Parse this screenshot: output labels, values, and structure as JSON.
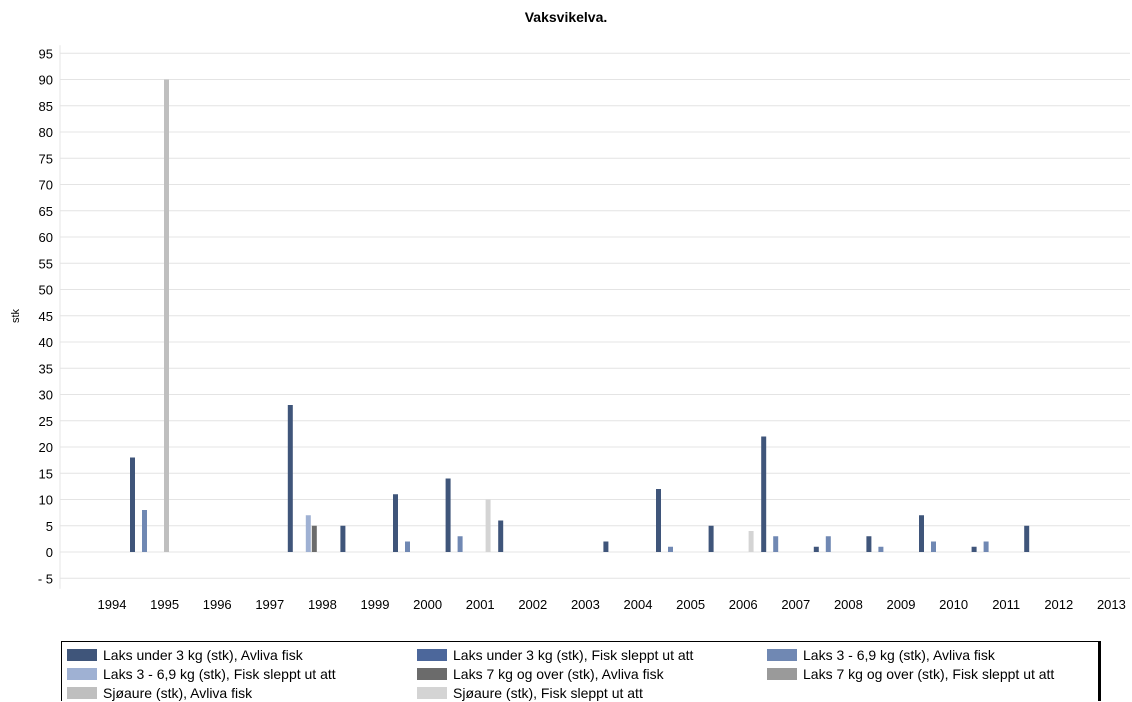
{
  "chart_data": {
    "type": "bar",
    "title": "Vaksvikelva.",
    "ylabel": "stk",
    "xlabel": "",
    "ylim": [
      -7,
      95
    ],
    "yticks": [
      95,
      90,
      85,
      80,
      75,
      70,
      65,
      60,
      55,
      50,
      45,
      40,
      35,
      30,
      25,
      20,
      15,
      10,
      5,
      0,
      -5
    ],
    "ytick_labels": [
      "95",
      "90",
      "85",
      "80",
      "75",
      "70",
      "65",
      "60",
      "55",
      "50",
      "45",
      "40",
      "35",
      "30",
      "25",
      "20",
      "15",
      "10",
      "5",
      "0",
      "- 5"
    ],
    "grid": true,
    "legend_position": "bottom",
    "categories": [
      "1994",
      "1995",
      "1996",
      "1997",
      "1998",
      "1999",
      "2000",
      "2001",
      "2002",
      "2003",
      "2004",
      "2005",
      "2006",
      "2007",
      "2008",
      "2009",
      "2010",
      "2011",
      "2012",
      "2013"
    ],
    "series": [
      {
        "name": "Laks under 3 kg (stk), Avliva fisk",
        "color": "#3f557a",
        "values": [
          null,
          18,
          null,
          null,
          28,
          5,
          11,
          14,
          6,
          null,
          2,
          12,
          5,
          22,
          1,
          3,
          7,
          1,
          5,
          null
        ]
      },
      {
        "name": "Laks under 3 kg (stk), Fisk sleppt ut att",
        "color": "#4c679b",
        "values": [
          null,
          null,
          null,
          null,
          null,
          null,
          null,
          null,
          null,
          null,
          null,
          null,
          null,
          null,
          null,
          null,
          null,
          null,
          null,
          null
        ]
      },
      {
        "name": "Laks 3 - 6,9 kg (stk), Avliva fisk",
        "color": "#7088b3",
        "values": [
          null,
          8,
          null,
          null,
          null,
          null,
          2,
          3,
          null,
          null,
          null,
          1,
          null,
          3,
          3,
          1,
          2,
          2,
          null,
          null
        ]
      },
      {
        "name": "Laks 3 - 6,9 kg (stk), Fisk sleppt ut att",
        "color": "#9fb1d3",
        "values": [
          null,
          null,
          null,
          null,
          7,
          null,
          null,
          null,
          null,
          null,
          null,
          null,
          null,
          null,
          null,
          null,
          null,
          null,
          null,
          null
        ]
      },
      {
        "name": "Laks 7 kg og over (stk), Avliva fisk",
        "color": "#6b6b6b",
        "values": [
          null,
          null,
          null,
          null,
          5,
          null,
          null,
          null,
          null,
          null,
          null,
          null,
          null,
          null,
          null,
          null,
          null,
          null,
          null,
          null
        ]
      },
      {
        "name": "Laks 7 kg og over (stk), Fisk sleppt ut att",
        "color": "#9a9a9a",
        "values": [
          null,
          null,
          null,
          null,
          null,
          null,
          null,
          null,
          null,
          null,
          null,
          null,
          null,
          null,
          null,
          null,
          null,
          null,
          null,
          null
        ]
      },
      {
        "name": "Sjøaure (stk), Avliva fisk",
        "color": "#bfbfbf",
        "values": [
          null,
          90,
          null,
          null,
          null,
          null,
          null,
          null,
          null,
          null,
          null,
          null,
          null,
          null,
          null,
          null,
          null,
          null,
          null,
          null
        ]
      },
      {
        "name": "Sjøaure (stk), Fisk sleppt ut att",
        "color": "#d4d4d4",
        "values": [
          null,
          null,
          null,
          null,
          null,
          null,
          null,
          10,
          null,
          null,
          null,
          null,
          4,
          null,
          null,
          null,
          null,
          null,
          null,
          null
        ]
      }
    ]
  }
}
